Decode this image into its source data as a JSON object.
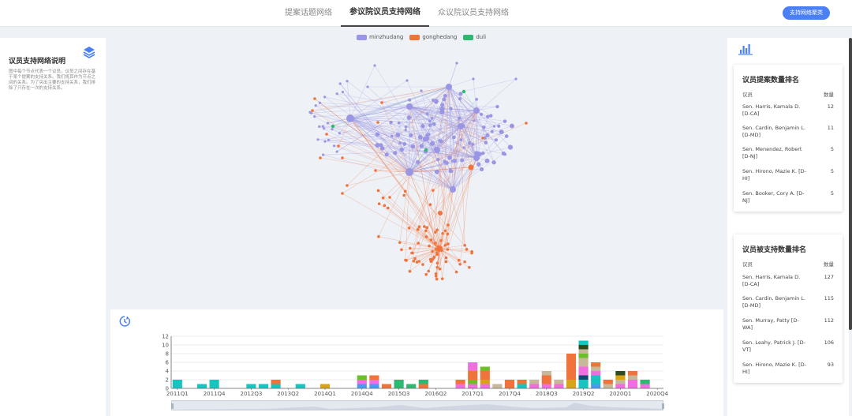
{
  "nav": {
    "tabs": [
      {
        "label": "提案话题网络",
        "active": false
      },
      {
        "label": "参议院议员支持网络",
        "active": true
      },
      {
        "label": "众议院议员支持网络",
        "active": false
      }
    ],
    "button_label": "支持网络聚类"
  },
  "left_panel": {
    "title": "议员支持网络说明",
    "description": "图中每个节点代表一个议员，议员之间存在基于某个提案的支持关系。我们将其作为节点之间的关系。为了突出主要的支持关系，我们排除了只存在一次的支持关系。",
    "icon": "layers-icon"
  },
  "network": {
    "legend": [
      {
        "name": "minzhudang",
        "color": "#9b96e3"
      },
      {
        "name": "gonghedang",
        "color": "#f0733c"
      },
      {
        "name": "duli",
        "color": "#2eb872"
      }
    ],
    "colors": {
      "minzhudang": "#9b96e3",
      "gonghedang": "#f0733c",
      "duli": "#2eb872"
    }
  },
  "chart_data": {
    "type": "bar",
    "stacked": true,
    "ylim": [
      0,
      12
    ],
    "yticks": [
      0,
      2,
      4,
      6,
      8,
      10,
      12
    ],
    "xtick_labels": [
      "2011Q1",
      "2011Q4",
      "2012Q3",
      "2013Q2",
      "2014Q1",
      "2014Q4",
      "2015Q3",
      "2016Q2",
      "2017Q1",
      "2017Q4",
      "2018Q3",
      "2019Q2",
      "2020Q1",
      "2020Q4"
    ],
    "categories": [
      "2011Q1",
      "2011Q2",
      "2011Q3",
      "2011Q4",
      "2012Q1",
      "2012Q2",
      "2012Q3",
      "2012Q4",
      "2013Q1",
      "2013Q2",
      "2013Q3",
      "2013Q4",
      "2014Q1",
      "2014Q2",
      "2014Q3",
      "2014Q4",
      "2015Q1",
      "2015Q2",
      "2015Q3",
      "2015Q4",
      "2016Q1",
      "2016Q2",
      "2016Q3",
      "2016Q4",
      "2017Q1",
      "2017Q2",
      "2017Q3",
      "2017Q4",
      "2018Q1",
      "2018Q2",
      "2018Q3",
      "2018Q4",
      "2019Q1",
      "2019Q2",
      "2019Q3",
      "2019Q4",
      "2020Q1",
      "2020Q2",
      "2020Q3",
      "2020Q4"
    ],
    "stacks": [
      [
        {
          "v": 2,
          "c": "#17c5c0"
        }
      ],
      [],
      [
        {
          "v": 1,
          "c": "#17c5c0"
        }
      ],
      [
        {
          "v": 2,
          "c": "#17c5c0"
        }
      ],
      [],
      [],
      [
        {
          "v": 1,
          "c": "#17c5c0"
        }
      ],
      [
        {
          "v": 1,
          "c": "#17c5c0"
        }
      ],
      [
        {
          "v": 1,
          "c": "#17c5c0"
        },
        {
          "v": 1,
          "c": "#f0733c"
        }
      ],
      [],
      [
        {
          "v": 1,
          "c": "#17c5c0"
        }
      ],
      [],
      [
        {
          "v": 1,
          "c": "#d9a317"
        }
      ],
      [],
      [],
      [
        {
          "v": 1,
          "c": "#4a9cf0"
        },
        {
          "v": 1,
          "c": "#f26de0"
        },
        {
          "v": 1,
          "c": "#6bbf2a"
        }
      ],
      [
        {
          "v": 1,
          "c": "#4a9cf0"
        },
        {
          "v": 1,
          "c": "#f26de0"
        },
        {
          "v": 1,
          "c": "#f0733c"
        }
      ],
      [
        {
          "v": 1,
          "c": "#f0733c"
        }
      ],
      [
        {
          "v": 2,
          "c": "#2eb872"
        }
      ],
      [
        {
          "v": 1,
          "c": "#2eb872"
        }
      ],
      [
        {
          "v": 1,
          "c": "#f0733c"
        },
        {
          "v": 1,
          "c": "#2eb872"
        }
      ],
      [],
      [],
      [
        {
          "v": 1,
          "c": "#f26de0"
        },
        {
          "v": 1,
          "c": "#f0733c"
        }
      ],
      [
        {
          "v": 1,
          "c": "#f26de0"
        },
        {
          "v": 1,
          "c": "#6bbf2a"
        },
        {
          "v": 2,
          "c": "#f0733c"
        },
        {
          "v": 2,
          "c": "#f26de0"
        }
      ],
      [
        {
          "v": 1,
          "c": "#f26de0"
        },
        {
          "v": 1,
          "c": "#d9a317"
        },
        {
          "v": 2,
          "c": "#f0733c"
        },
        {
          "v": 1,
          "c": "#6bbf2a"
        }
      ],
      [
        {
          "v": 1,
          "c": "#c8b89a"
        }
      ],
      [
        {
          "v": 2,
          "c": "#f0733c"
        }
      ],
      [
        {
          "v": 1,
          "c": "#17c5c0"
        },
        {
          "v": 1,
          "c": "#f0733c"
        }
      ],
      [
        {
          "v": 1,
          "c": "#f26de0"
        },
        {
          "v": 1,
          "c": "#c8b89a"
        }
      ],
      [
        {
          "v": 1,
          "c": "#f26de0"
        },
        {
          "v": 2,
          "c": "#f0733c"
        },
        {
          "v": 1,
          "c": "#c8b89a"
        }
      ],
      [
        {
          "v": 1,
          "c": "#f26de0"
        },
        {
          "v": 1,
          "c": "#c8b89a"
        }
      ],
      [
        {
          "v": 2,
          "c": "#d9a317"
        },
        {
          "v": 6,
          "c": "#f0733c"
        }
      ],
      [
        {
          "v": 2,
          "c": "#17c5c0"
        },
        {
          "v": 1,
          "c": "#0b4a6f"
        },
        {
          "v": 2,
          "c": "#f26de0"
        },
        {
          "v": 2,
          "c": "#c8b89a"
        },
        {
          "v": 1,
          "c": "#6bbf2a"
        },
        {
          "v": 1,
          "c": "#c8b89a"
        },
        {
          "v": 1,
          "c": "#2f4a1e"
        },
        {
          "v": 1,
          "c": "#17c5c0"
        }
      ],
      [
        {
          "v": 1,
          "c": "#4a9cf0"
        },
        {
          "v": 2,
          "c": "#17c5c0"
        },
        {
          "v": 1,
          "c": "#f26de0"
        },
        {
          "v": 1,
          "c": "#c8b89a"
        },
        {
          "v": 1,
          "c": "#f0733c"
        }
      ],
      [
        {
          "v": 1,
          "c": "#c8b89a"
        },
        {
          "v": 1,
          "c": "#f0733c"
        }
      ],
      [
        {
          "v": 1,
          "c": "#f26de0"
        },
        {
          "v": 1,
          "c": "#c8b89a"
        },
        {
          "v": 1,
          "c": "#d9a317"
        },
        {
          "v": 1,
          "c": "#2f4a1e"
        }
      ],
      [
        {
          "v": 2,
          "c": "#f26de0"
        },
        {
          "v": 1,
          "c": "#c8b89a"
        },
        {
          "v": 1,
          "c": "#f0733c"
        }
      ],
      [
        {
          "v": 1,
          "c": "#f26de0"
        },
        {
          "v": 1,
          "c": "#2eb872"
        }
      ],
      []
    ]
  },
  "right_panel": {
    "icon": "bar-chart-icon",
    "card1": {
      "title": "议员提案数量排名",
      "col_name": "议员",
      "col_count": "数量",
      "rows": [
        {
          "name": "Sen. Harris, Kamala D. [D-CA]",
          "count": "12"
        },
        {
          "name": "Sen. Cardin, Benjamin L. [D-MD]",
          "count": "11"
        },
        {
          "name": "Sen. Menendez, Robert [D-NJ]",
          "count": "5"
        },
        {
          "name": "Sen. Hirono, Mazie K. [D-HI]",
          "count": "5"
        },
        {
          "name": "Sen. Booker, Cory A. [D-NJ]",
          "count": "5"
        }
      ]
    },
    "card2": {
      "title": "议员被支持数量排名",
      "col_name": "议员",
      "col_count": "数量",
      "rows": [
        {
          "name": "Sen. Harris, Kamala D. [D-CA]",
          "count": "127"
        },
        {
          "name": "Sen. Cardin, Benjamin L. [D-MD]",
          "count": "115"
        },
        {
          "name": "Sen. Murray, Patty [D-WA]",
          "count": "112"
        },
        {
          "name": "Sen. Leahy, Patrick J. [D-VT]",
          "count": "106"
        },
        {
          "name": "Sen. Hirono, Mazie K. [D-HI]",
          "count": "93"
        }
      ]
    }
  }
}
